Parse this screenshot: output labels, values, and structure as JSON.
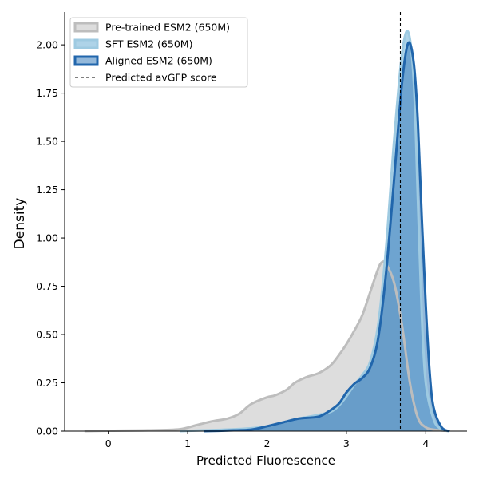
{
  "chart_data": {
    "type": "area",
    "xlabel": "Predicted Fluorescence",
    "ylabel": "Density",
    "xlim": [
      -0.55,
      4.52
    ],
    "ylim": [
      0,
      2.17
    ],
    "x_ticks": [
      0,
      1,
      2,
      3,
      4
    ],
    "y_ticks": [
      0.0,
      0.25,
      0.5,
      0.75,
      1.0,
      1.25,
      1.5,
      1.75,
      2.0
    ],
    "x_tick_labels": [
      "0",
      "1",
      "2",
      "3",
      "4"
    ],
    "y_tick_labels": [
      "0.00",
      "0.25",
      "0.50",
      "0.75",
      "1.00",
      "1.25",
      "1.50",
      "1.75",
      "2.00"
    ],
    "grid": false,
    "legend_position": "top-left",
    "reference_line": {
      "label": "Predicted avGFP score",
      "x": 3.68,
      "style": "dashed",
      "color": "#000000"
    },
    "series": [
      {
        "name": "Pre-trained ESM2 (650M)",
        "line_color": "#bdbdbd",
        "fill_color": "#d9d9d9",
        "fill_opacity": 0.9,
        "points": [
          [
            -0.3,
            0
          ],
          [
            0,
            0.002
          ],
          [
            0.5,
            0.004
          ],
          [
            0.9,
            0.01
          ],
          [
            1.1,
            0.03
          ],
          [
            1.3,
            0.05
          ],
          [
            1.5,
            0.065
          ],
          [
            1.65,
            0.09
          ],
          [
            1.8,
            0.14
          ],
          [
            2.0,
            0.175
          ],
          [
            2.1,
            0.185
          ],
          [
            2.25,
            0.215
          ],
          [
            2.35,
            0.25
          ],
          [
            2.5,
            0.28
          ],
          [
            2.65,
            0.3
          ],
          [
            2.8,
            0.34
          ],
          [
            2.9,
            0.39
          ],
          [
            3.0,
            0.45
          ],
          [
            3.1,
            0.52
          ],
          [
            3.2,
            0.6
          ],
          [
            3.3,
            0.72
          ],
          [
            3.4,
            0.84
          ],
          [
            3.45,
            0.875
          ],
          [
            3.5,
            0.865
          ],
          [
            3.6,
            0.77
          ],
          [
            3.7,
            0.55
          ],
          [
            3.8,
            0.25
          ],
          [
            3.9,
            0.07
          ],
          [
            4.0,
            0.02
          ],
          [
            4.1,
            0.008
          ],
          [
            4.25,
            0.002
          ],
          [
            4.3,
            0
          ]
        ]
      },
      {
        "name": "SFT ESM2 (650M)",
        "line_color": "#9ecae1",
        "fill_color": "#6baed6",
        "fill_opacity": 0.55,
        "points": [
          [
            0.9,
            0
          ],
          [
            1.2,
            0.004
          ],
          [
            1.5,
            0.008
          ],
          [
            1.8,
            0.015
          ],
          [
            2.0,
            0.025
          ],
          [
            2.2,
            0.045
          ],
          [
            2.4,
            0.065
          ],
          [
            2.6,
            0.08
          ],
          [
            2.8,
            0.1
          ],
          [
            2.9,
            0.13
          ],
          [
            3.0,
            0.18
          ],
          [
            3.1,
            0.24
          ],
          [
            3.2,
            0.29
          ],
          [
            3.3,
            0.36
          ],
          [
            3.4,
            0.55
          ],
          [
            3.5,
            0.95
          ],
          [
            3.6,
            1.5
          ],
          [
            3.7,
            1.95
          ],
          [
            3.78,
            2.065
          ],
          [
            3.85,
            1.8
          ],
          [
            3.9,
            1.2
          ],
          [
            3.95,
            0.6
          ],
          [
            4.0,
            0.25
          ],
          [
            4.1,
            0.06
          ],
          [
            4.2,
            0.01
          ],
          [
            4.3,
            0
          ]
        ]
      },
      {
        "name": "Aligned ESM2 (650M)",
        "line_color": "#2166ac",
        "fill_color": "#3b7dbb",
        "fill_opacity": 0.55,
        "points": [
          [
            1.2,
            0
          ],
          [
            1.5,
            0.003
          ],
          [
            1.8,
            0.008
          ],
          [
            2.0,
            0.025
          ],
          [
            2.2,
            0.045
          ],
          [
            2.4,
            0.065
          ],
          [
            2.55,
            0.07
          ],
          [
            2.65,
            0.075
          ],
          [
            2.75,
            0.095
          ],
          [
            2.9,
            0.14
          ],
          [
            3.0,
            0.2
          ],
          [
            3.1,
            0.245
          ],
          [
            3.2,
            0.275
          ],
          [
            3.3,
            0.33
          ],
          [
            3.4,
            0.48
          ],
          [
            3.5,
            0.82
          ],
          [
            3.6,
            1.3
          ],
          [
            3.7,
            1.8
          ],
          [
            3.78,
            2.01
          ],
          [
            3.85,
            1.9
          ],
          [
            3.9,
            1.6
          ],
          [
            3.95,
            1.1
          ],
          [
            4.0,
            0.65
          ],
          [
            4.05,
            0.3
          ],
          [
            4.1,
            0.12
          ],
          [
            4.2,
            0.02
          ],
          [
            4.3,
            0
          ]
        ]
      }
    ]
  }
}
